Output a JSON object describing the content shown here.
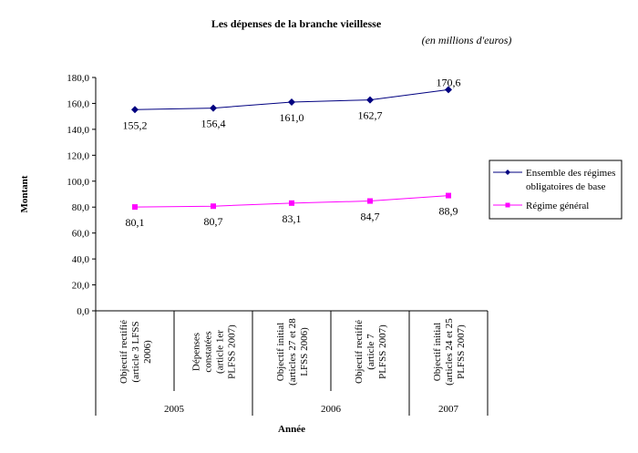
{
  "chart_data": {
    "type": "line",
    "title": "Les dépenses de la branche vieillesse",
    "subtitle": "(en millions d'euros)",
    "xlabel": "Année",
    "ylabel": "Montant",
    "ylim": [
      0,
      180
    ],
    "yticks": [
      "0,0",
      "20,0",
      "40,0",
      "60,0",
      "80,0",
      "100,0",
      "120,0",
      "140,0",
      "160,0",
      "180,0"
    ],
    "categories": [
      [
        "Objectif rectifié",
        "(article 3 LFSS",
        "2006)"
      ],
      [
        "Dépenses",
        "constatées",
        "(article 1er",
        "PLFSS 2007)"
      ],
      [
        "Objectif initial",
        "(articles 27 et 28",
        "LFSS 2006)"
      ],
      [
        "Objectif rectifié",
        "(article 7",
        "PLFSS 2007)"
      ],
      [
        "Objectif initial",
        "(articles 24 et 25",
        "PLFSS 2007)"
      ]
    ],
    "groups": [
      {
        "label": "2005",
        "span": 2
      },
      {
        "label": "2006",
        "span": 2
      },
      {
        "label": "2007",
        "span": 1
      }
    ],
    "grid": false,
    "legend_position": "right",
    "series": [
      {
        "name": "Ensemble des régimes obligatoires de base",
        "name_lines": [
          "Ensemble des régimes",
          "obligatoires de base"
        ],
        "values": [
          155.2,
          156.4,
          161.0,
          162.7,
          170.6
        ],
        "labels": [
          "155,2",
          "156,4",
          "161,0",
          "162,7",
          "170,6"
        ],
        "color": "#000080",
        "marker": "diamond"
      },
      {
        "name": "Régime général",
        "name_lines": [
          "Régime général"
        ],
        "values": [
          80.1,
          80.7,
          83.1,
          84.7,
          88.9
        ],
        "labels": [
          "80,1",
          "80,7",
          "83,1",
          "84,7",
          "88,9"
        ],
        "color": "#FF00FF",
        "marker": "square"
      }
    ]
  }
}
